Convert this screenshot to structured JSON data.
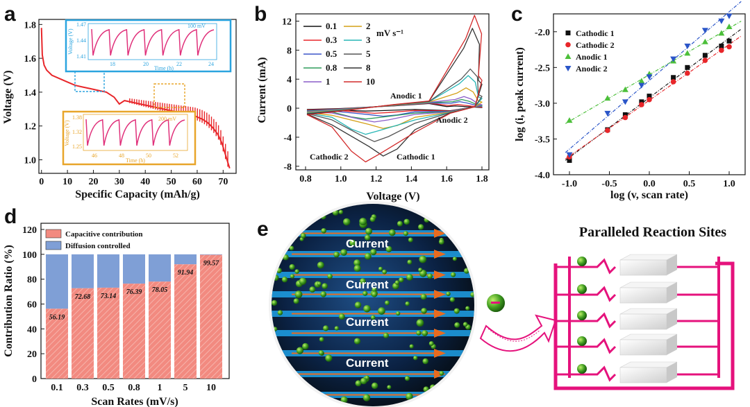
{
  "panels": {
    "a": "a",
    "b": "b",
    "c": "c",
    "d": "d",
    "e": "e"
  },
  "colors": {
    "red": "#e8262a",
    "pink": "#e0307a",
    "blue_box": "#2ba4df",
    "orange_box": "#e8a52a",
    "bar_cap": "#f28a80",
    "bar_diff": "#7f9fd6",
    "magenta": "#e5127c"
  },
  "chart_data": [
    {
      "id": "a",
      "type": "line",
      "xlabel": "Specific Capacity (mAh/g)",
      "ylabel": "Voltage (V)",
      "xlim": [
        -1,
        75
      ],
      "ylim": [
        0.92,
        1.83
      ],
      "xticks": [
        "0",
        "10",
        "20",
        "30",
        "40",
        "50",
        "60",
        "70"
      ],
      "yticks": [
        "1.0",
        "1.2",
        "1.4",
        "1.6",
        "1.8"
      ],
      "series": [
        {
          "color": "#e8262a",
          "x": [
            0,
            0.3,
            1,
            2,
            4,
            7,
            10,
            13,
            16,
            19,
            22,
            25,
            28,
            30,
            32,
            35,
            38,
            41,
            44,
            47,
            50,
            53,
            56,
            59,
            62,
            64,
            66,
            68,
            69.5,
            70.5,
            71.5,
            72.5
          ],
          "y": [
            1.78,
            1.62,
            1.56,
            1.53,
            1.5,
            1.48,
            1.46,
            1.44,
            1.43,
            1.42,
            1.41,
            1.4,
            1.37,
            1.33,
            1.35,
            1.34,
            1.33,
            1.32,
            1.31,
            1.3,
            1.29,
            1.28,
            1.27,
            1.26,
            1.24,
            1.22,
            1.19,
            1.15,
            1.1,
            1.05,
            1.0,
            0.95
          ]
        }
      ],
      "oscillation_start_x": 34,
      "insets": [
        {
          "border": "#2ba4df",
          "ylabel": "Voltage (V)",
          "yticks": [
            "1.47",
            "1.44",
            "1.41"
          ],
          "xticks": [
            "18",
            "20",
            "22",
            "24"
          ],
          "xlabel": "Time (h)",
          "note": "100 mV"
        },
        {
          "border": "#e8a52a",
          "ylabel": "Voltage (V)",
          "yticks": [
            "1.38",
            "1.32",
            "1.25"
          ],
          "xticks": [
            "46",
            "48",
            "50",
            "52"
          ],
          "xlabel": "Time (h)",
          "note": "200 mV"
        }
      ]
    },
    {
      "id": "b",
      "type": "line",
      "xlabel": "Voltage (V)",
      "ylabel": "Current (mA)",
      "xlim": [
        0.8,
        1.8
      ],
      "ylim": [
        -8.5,
        13
      ],
      "xticks": [
        "0.8",
        "1.0",
        "1.2",
        "1.4",
        "1.6",
        "1.8"
      ],
      "yticks": [
        "12",
        "8",
        "4",
        "0",
        "-4",
        "-8"
      ],
      "unit": "mV s⁻¹",
      "legend": [
        {
          "name": "0.1",
          "color": "#111111"
        },
        {
          "name": "2",
          "color": "#d4a017"
        },
        {
          "name": "0.3",
          "color": "#e8262a"
        },
        {
          "name": "3",
          "color": "#26b5b5"
        },
        {
          "name": "0.5",
          "color": "#3a55c8"
        },
        {
          "name": "5",
          "color": "#555555"
        },
        {
          "name": "0.8",
          "color": "#2e9c5a"
        },
        {
          "name": "8",
          "color": "#333333"
        },
        {
          "name": "1",
          "color": "#8a5cc9"
        },
        {
          "name": "10",
          "color": "#d22a2a"
        }
      ],
      "series": [
        {
          "name": "0.1",
          "peak_anodic": 0.3,
          "peak_cathodic": -0.4
        },
        {
          "name": "0.3",
          "peak_anodic": 0.5,
          "peak_cathodic": -0.7
        },
        {
          "name": "0.5",
          "peak_anodic": 0.9,
          "peak_cathodic": -1.1
        },
        {
          "name": "0.8",
          "peak_anodic": 1.2,
          "peak_cathodic": -1.5
        },
        {
          "name": "1",
          "peak_anodic": 1.6,
          "peak_cathodic": -1.9
        },
        {
          "name": "2",
          "peak_anodic": 2.8,
          "peak_cathodic": -2.8
        },
        {
          "name": "3",
          "peak_anodic": 4.5,
          "peak_cathodic": -3.6
        },
        {
          "name": "5",
          "peak_anodic": 5.4,
          "peak_cathodic": -4.6
        },
        {
          "name": "8",
          "peak_anodic": 11.0,
          "peak_cathodic": -6.6
        },
        {
          "name": "10",
          "peak_anodic": 12.8,
          "peak_cathodic": -7.4
        }
      ],
      "annotations": [
        "Anodic 1",
        "Anodic 2",
        "Cathodic 1",
        "Cathodic 2"
      ]
    },
    {
      "id": "c",
      "type": "scatter",
      "xlabel": "log (v, scan rate)",
      "ylabel": "log (i, peak current)",
      "xlim": [
        -1.2,
        1.2
      ],
      "ylim": [
        -4.0,
        -1.75
      ],
      "xticks": [
        "-1.0",
        "-0.5",
        "0.0",
        "0.5",
        "1.0"
      ],
      "yticks": [
        "-2.0",
        "-2.5",
        "-3.0",
        "-3.5",
        "-4.0"
      ],
      "x": [
        -1.0,
        -0.523,
        -0.301,
        -0.097,
        0.0,
        0.301,
        0.477,
        0.699,
        0.903,
        1.0
      ],
      "series": [
        {
          "name": "Cathodic 1",
          "color": "#111111",
          "marker": "square",
          "values": [
            -3.8,
            -3.37,
            -3.16,
            -2.98,
            -2.9,
            -2.64,
            -2.5,
            -2.33,
            -2.2,
            -2.13
          ]
        },
        {
          "name": "Cathodic 2",
          "color": "#e8262a",
          "marker": "circle",
          "values": [
            -3.75,
            -3.38,
            -3.2,
            -3.02,
            -2.95,
            -2.7,
            -2.58,
            -2.4,
            -2.26,
            -2.21
          ]
        },
        {
          "name": "Anodic 1",
          "color": "#4cbf3a",
          "marker": "triangle",
          "values": [
            -3.24,
            -2.93,
            -2.81,
            -2.69,
            -2.59,
            -2.41,
            -2.3,
            -2.14,
            -2.02,
            -1.93
          ]
        },
        {
          "name": "Anodic 2",
          "color": "#2a55c8",
          "marker": "triangle-down",
          "values": [
            -3.72,
            -3.14,
            -2.98,
            -2.75,
            -2.63,
            -2.38,
            -2.2,
            -1.98,
            -1.85,
            -1.78
          ]
        }
      ]
    },
    {
      "id": "d",
      "type": "bar",
      "xlabel": "Scan Rates (mV/s)",
      "ylabel": "Contribution Ratio (%)",
      "ylim": [
        0,
        125
      ],
      "yticks": [
        "0",
        "20",
        "40",
        "60",
        "80",
        "100",
        "120"
      ],
      "categories": [
        "0.1",
        "0.3",
        "0.5",
        "0.8",
        "1",
        "5",
        "10"
      ],
      "series": [
        {
          "name": "Capacitive contribution",
          "color": "#f28a80",
          "values": [
            56.19,
            72.68,
            73.14,
            76.39,
            78.05,
            91.94,
            99.57
          ]
        },
        {
          "name": "Diffusion controlled",
          "color": "#7f9fd6",
          "values": [
            43.81,
            27.32,
            26.86,
            23.61,
            21.95,
            8.06,
            0.43
          ]
        }
      ],
      "bar_labels": [
        "56.19",
        "72.68",
        "73.14",
        "76.39",
        "78.05",
        "91.94",
        "99.57"
      ]
    }
  ],
  "panel_e": {
    "currents": [
      "Current",
      "Current",
      "Current",
      "Current"
    ],
    "title": "Paralleled Reaction Sites"
  }
}
